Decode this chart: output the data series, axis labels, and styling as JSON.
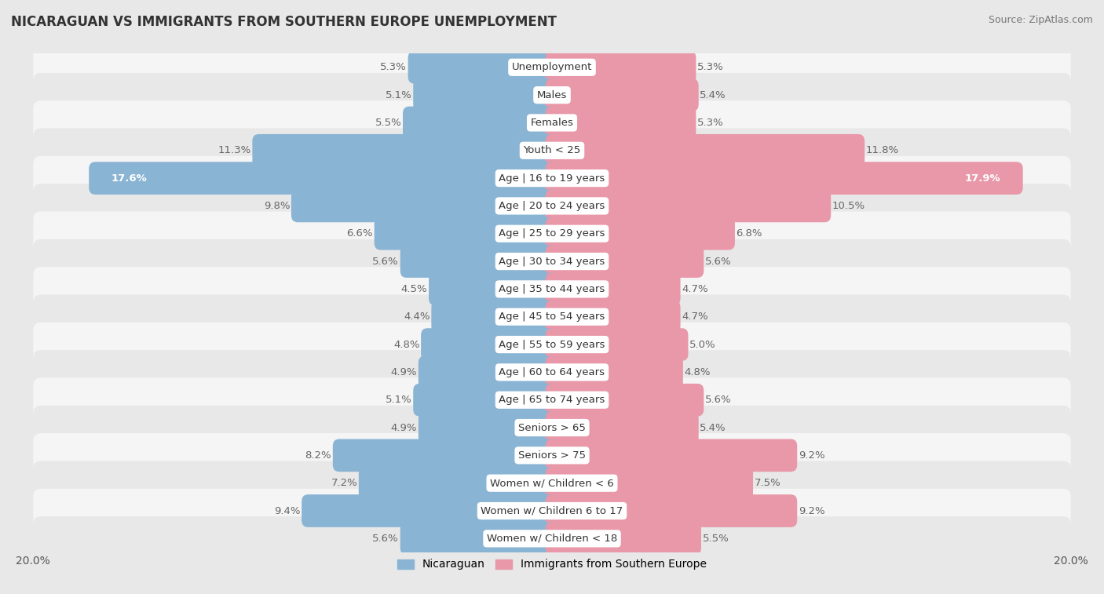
{
  "title": "NICARAGUAN VS IMMIGRANTS FROM SOUTHERN EUROPE UNEMPLOYMENT",
  "source": "Source: ZipAtlas.com",
  "categories": [
    "Unemployment",
    "Males",
    "Females",
    "Youth < 25",
    "Age | 16 to 19 years",
    "Age | 20 to 24 years",
    "Age | 25 to 29 years",
    "Age | 30 to 34 years",
    "Age | 35 to 44 years",
    "Age | 45 to 54 years",
    "Age | 55 to 59 years",
    "Age | 60 to 64 years",
    "Age | 65 to 74 years",
    "Seniors > 65",
    "Seniors > 75",
    "Women w/ Children < 6",
    "Women w/ Children 6 to 17",
    "Women w/ Children < 18"
  ],
  "nicaraguan": [
    5.3,
    5.1,
    5.5,
    11.3,
    17.6,
    9.8,
    6.6,
    5.6,
    4.5,
    4.4,
    4.8,
    4.9,
    5.1,
    4.9,
    8.2,
    7.2,
    9.4,
    5.6
  ],
  "southern_europe": [
    5.3,
    5.4,
    5.3,
    11.8,
    17.9,
    10.5,
    6.8,
    5.6,
    4.7,
    4.7,
    5.0,
    4.8,
    5.6,
    5.4,
    9.2,
    7.5,
    9.2,
    5.5
  ],
  "blue_color": "#8ab4d4",
  "pink_color": "#e898a8",
  "bg_color": "#e8e8e8",
  "row_white": "#f8f8f8",
  "row_gray": "#e0e0e0",
  "axis_max": 20.0,
  "legend_blue": "Nicaraguan",
  "legend_pink": "Immigrants from Southern Europe",
  "label_fontsize": 9.5,
  "title_fontsize": 12,
  "source_fontsize": 9
}
